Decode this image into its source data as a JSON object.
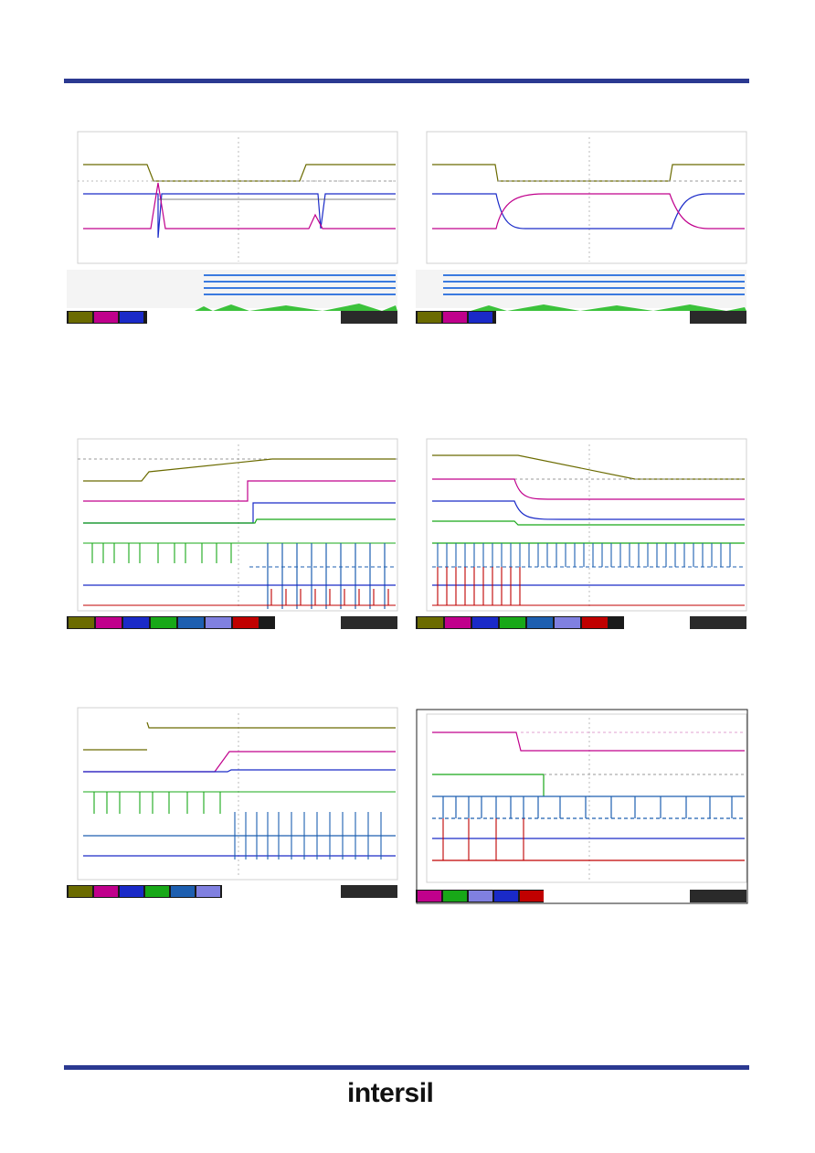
{
  "header": {
    "rule_color": "#2b3991"
  },
  "footer": {
    "rule_color": "#2b3991",
    "logo_text": "intersil"
  },
  "colors": {
    "olive": "#6b6b00",
    "magenta": "#c0008c",
    "blue": "#1a2ac8",
    "green": "#18a818",
    "teal": "#1d5fb0",
    "red": "#c00000",
    "grid": "#b8b8b8",
    "grey_dash": "#9a9a9a"
  },
  "figures": [
    {
      "id": "fig1",
      "content": "scope-top-left"
    },
    {
      "id": "fig2",
      "content": "scope-top-right"
    },
    {
      "id": "fig3",
      "content": "scope-mid-left"
    },
    {
      "id": "fig4",
      "content": "scope-mid-right"
    },
    {
      "id": "fig5",
      "content": "scope-bottom-left"
    },
    {
      "id": "fig6",
      "content": "scope-bottom-right"
    }
  ]
}
